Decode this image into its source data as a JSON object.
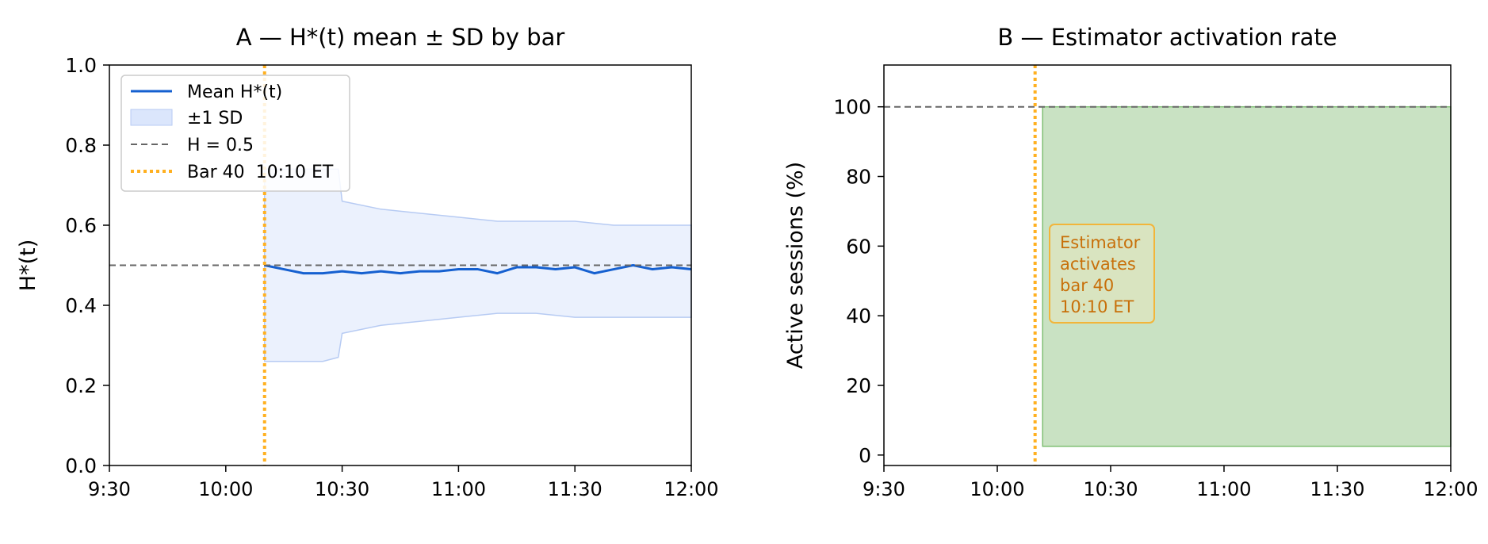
{
  "chart_data": [
    {
      "type": "line",
      "title": "A — H*(t) mean ± SD by bar",
      "xlabel": "",
      "ylabel": "H*(t)",
      "xlim": [
        "9:30",
        "12:00"
      ],
      "ylim": [
        0.0,
        1.0
      ],
      "x_ticks": [
        "9:30",
        "10:00",
        "10:30",
        "11:00",
        "11:30",
        "12:00"
      ],
      "y_ticks": [
        "0.0",
        "0.2",
        "0.4",
        "0.6",
        "0.8",
        "1.0"
      ],
      "grid": false,
      "legend_position": "top-left",
      "legend": [
        "Mean H*(t)",
        "±1 SD",
        "H = 0.5",
        "Bar 40  10:10 ET"
      ],
      "series": [
        {
          "name": "Mean H*(t)",
          "color": "#1560d0",
          "x": [
            "10:10",
            "10:15",
            "10:20",
            "10:25",
            "10:30",
            "10:35",
            "10:40",
            "10:45",
            "10:50",
            "10:55",
            "11:00",
            "11:05",
            "11:10",
            "11:15",
            "11:20",
            "11:25",
            "11:30",
            "11:35",
            "11:40",
            "11:45",
            "11:50",
            "11:55",
            "12:00"
          ],
          "y": [
            0.5,
            0.49,
            0.48,
            0.48,
            0.485,
            0.48,
            0.485,
            0.48,
            0.485,
            0.485,
            0.49,
            0.49,
            0.48,
            0.495,
            0.495,
            0.49,
            0.495,
            0.48,
            0.49,
            0.5,
            0.49,
            0.495,
            0.49
          ]
        },
        {
          "name": "±1 SD",
          "color": "#dbe6fc",
          "x": [
            "10:10",
            "10:15",
            "10:20",
            "10:25",
            "10:29",
            "10:30",
            "10:40",
            "10:50",
            "11:00",
            "11:10",
            "11:20",
            "11:30",
            "11:40",
            "11:50",
            "12:00"
          ],
          "upper": [
            0.74,
            0.74,
            0.74,
            0.74,
            0.74,
            0.66,
            0.64,
            0.63,
            0.62,
            0.61,
            0.61,
            0.61,
            0.6,
            0.6,
            0.6
          ],
          "lower": [
            0.26,
            0.26,
            0.26,
            0.26,
            0.27,
            0.33,
            0.35,
            0.36,
            0.37,
            0.38,
            0.38,
            0.37,
            0.37,
            0.37,
            0.37
          ]
        }
      ],
      "hlines": [
        {
          "name": "H = 0.5",
          "y": 0.5,
          "style": "dashed",
          "color": "#666666"
        }
      ],
      "vlines": [
        {
          "name": "Bar 40  10:10 ET",
          "x": "10:10",
          "style": "dotted",
          "color": "#ffb020"
        }
      ]
    },
    {
      "type": "area",
      "title": "B — Estimator activation rate",
      "xlabel": "",
      "ylabel": "Active sessions (%)",
      "xlim": [
        "9:30",
        "12:00"
      ],
      "ylim": [
        -3,
        112
      ],
      "x_ticks": [
        "9:30",
        "10:00",
        "10:30",
        "11:00",
        "11:30",
        "12:00"
      ],
      "y_ticks": [
        "0",
        "20",
        "40",
        "60",
        "80",
        "100"
      ],
      "grid": false,
      "series": [
        {
          "name": "Active sessions",
          "color": "#c9e2c3",
          "x": [
            "10:12",
            "12:00"
          ],
          "y": [
            100,
            100
          ],
          "baseline": 2.5
        }
      ],
      "hlines": [
        {
          "y": 100,
          "style": "dashed",
          "color": "#666666"
        }
      ],
      "vlines": [
        {
          "x": "10:10",
          "style": "dotted",
          "color": "#ffb020"
        }
      ],
      "annotation": {
        "lines": [
          "Estimator",
          "activates",
          "bar 40",
          "10:10 ET"
        ],
        "color": "#c8700a"
      }
    }
  ]
}
